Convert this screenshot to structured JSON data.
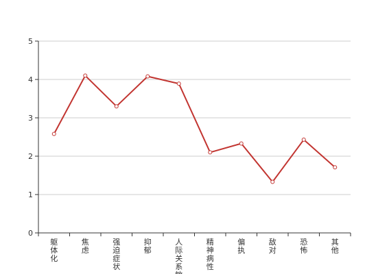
{
  "chart_data": {
    "type": "line",
    "categories": [
      "躯体化",
      "焦虑",
      "强迫症状",
      "抑郁",
      "人际关系敏感",
      "精神病性",
      "偏执",
      "敌对",
      "恐怖",
      "其他"
    ],
    "series": [
      {
        "values": [
          2.58,
          4.1,
          3.3,
          4.08,
          3.89,
          2.1,
          2.33,
          1.33,
          2.43,
          1.71
        ]
      }
    ],
    "ylim": [
      0,
      5
    ],
    "yticks": [
      0,
      1,
      2,
      3,
      4,
      5
    ],
    "grid": true,
    "colors": {
      "line": "#c23531",
      "point_fill": "#ffffff",
      "grid": "#cccccc",
      "axis": "#333333"
    }
  }
}
